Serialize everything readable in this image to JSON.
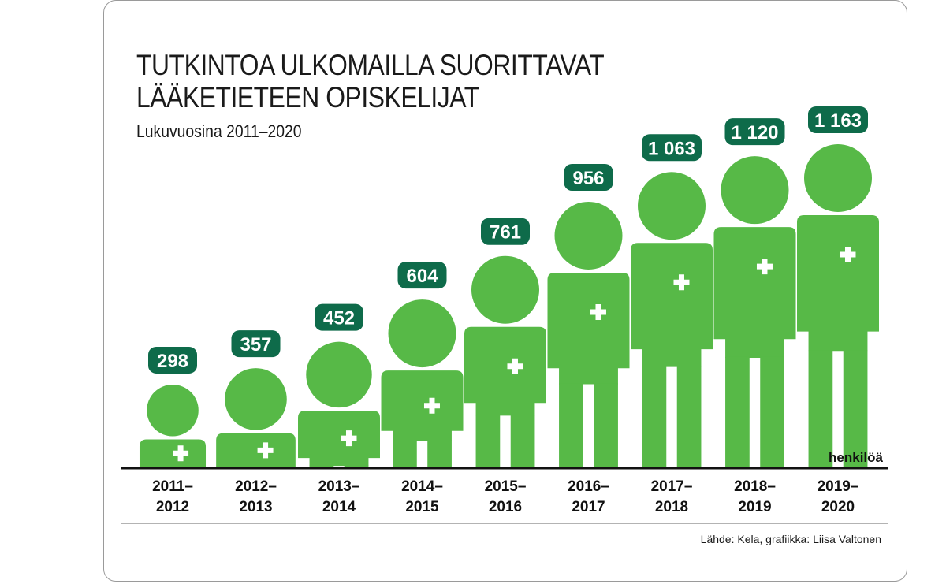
{
  "chart_data": {
    "type": "bar",
    "title": "TUTKINTOA ULKOMAILLA SUORITTAVAT LÄÄKETIETEEN OPISKELIJAT",
    "title_lines": [
      "TUTKINTOA ULKOMAILLA SUORITTAVAT",
      "LÄÄKETIETEEN OPISKELIJAT"
    ],
    "subtitle": "Lukuvuosina 2011–2020",
    "unit_label": "henkilöä",
    "categories": [
      [
        "2011–",
        "2012"
      ],
      [
        "2012–",
        "2013"
      ],
      [
        "2013–",
        "2014"
      ],
      [
        "2014–",
        "2015"
      ],
      [
        "2015–",
        "2016"
      ],
      [
        "2016–",
        "2017"
      ],
      [
        "2017–",
        "2018"
      ],
      [
        "2018–",
        "2019"
      ],
      [
        "2019–",
        "2020"
      ]
    ],
    "values": [
      298,
      357,
      452,
      604,
      761,
      956,
      1063,
      1120,
      1163
    ],
    "value_labels": [
      "298",
      "357",
      "452",
      "604",
      "761",
      "956",
      "1 063",
      "1 120",
      "1 163"
    ],
    "ylim": [
      0,
      1163
    ],
    "grid": false,
    "mark": "pictogram-person"
  },
  "source": "Lähde: Kela, grafiikka: Liisa Valtonen",
  "colors": {
    "figure": "#57b947",
    "badge": "#0e6b4a",
    "badge_text": "#ffffff",
    "axis": "#111111",
    "rule": "#9a9a9a"
  }
}
